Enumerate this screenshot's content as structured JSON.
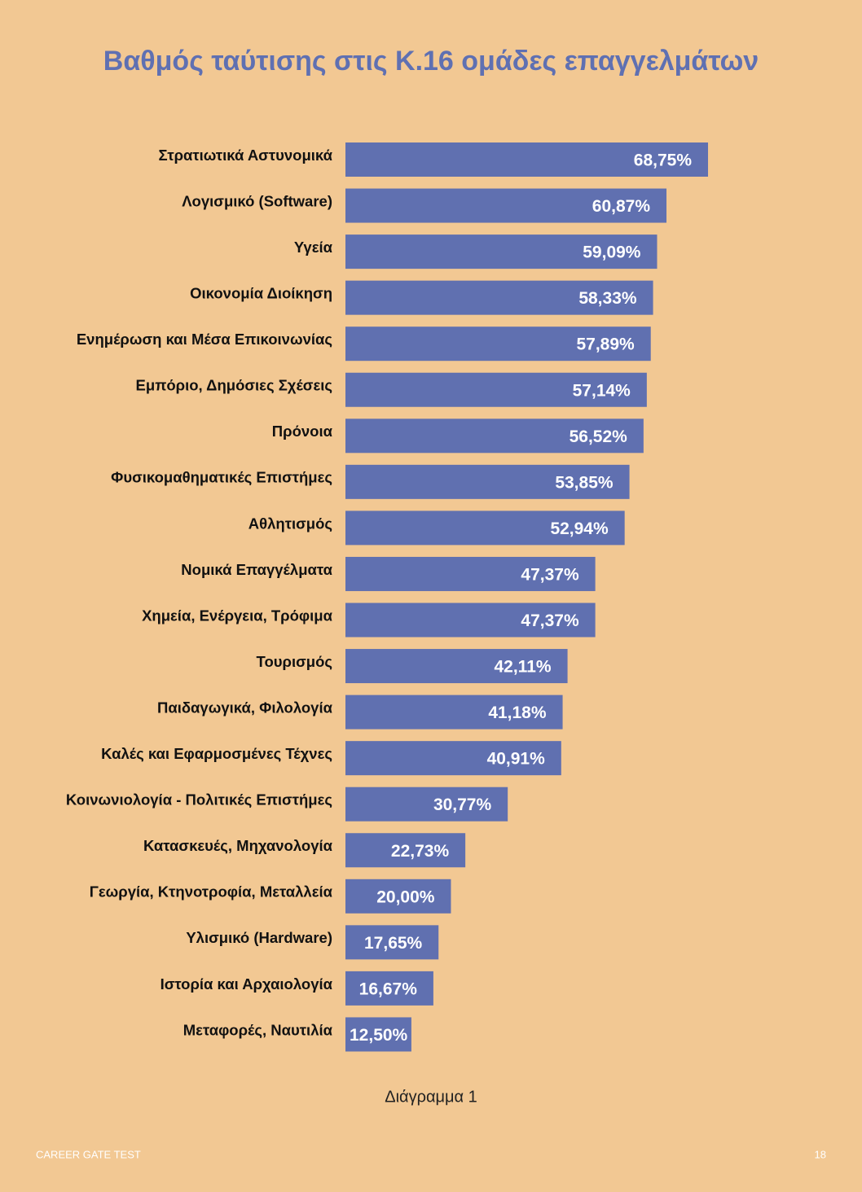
{
  "chart_data": {
    "type": "bar",
    "orientation": "horizontal",
    "title": "Βαθμός ταύτισης στις Κ.16 ομάδες επαγγελμάτων",
    "color": "#6070b0",
    "categories": [
      "Στρατιωτικά Αστυνομικά",
      "Λογισμικό (Software)",
      "Υγεία",
      "Οικονομία Διοίκηση",
      "Ενημέρωση και Μέσα Επικοινωνίας",
      "Εμπόριο, Δημόσιες Σχέσεις",
      "Πρόνοια",
      "Φυσικομαθηματικές Επιστήμες",
      "Αθλητισμός",
      "Νομικά Επαγγέλματα",
      "Χημεία, Ενέργεια, Τρόφιμα",
      "Τουρισμός",
      "Παιδαγωγικά, Φιλολογία",
      "Καλές και Εφαρμοσμένες Τέχνες",
      "Κοινωνιολογία - Πολιτικές Επιστήμες",
      "Κατασκευές, Μηχανολογία",
      "Γεωργία, Κτηνοτροφία, Μεταλλεία",
      "Υλισμικό (Hardware)",
      "Ιστορία και Αρχαιολογία",
      "Μεταφορές, Ναυτιλία"
    ],
    "values": [
      68.75,
      60.87,
      59.09,
      58.33,
      57.89,
      57.14,
      56.52,
      53.85,
      52.94,
      47.37,
      47.37,
      42.11,
      41.18,
      40.91,
      30.77,
      22.73,
      20.0,
      17.65,
      16.67,
      12.5
    ],
    "value_labels": [
      "68,75%",
      "60,87%",
      "59,09%",
      "58,33%",
      "57,89%",
      "57,14%",
      "56,52%",
      "53,85%",
      "52,94%",
      "47,37%",
      "47,37%",
      "42,11%",
      "41,18%",
      "40,91%",
      "30,77%",
      "22,73%",
      "20,00%",
      "17,65%",
      "16,67%",
      "12,50%"
    ]
  },
  "caption": "Διάγραμμα 1",
  "footer": {
    "left": "CAREER GATE TEST",
    "page": "18"
  }
}
